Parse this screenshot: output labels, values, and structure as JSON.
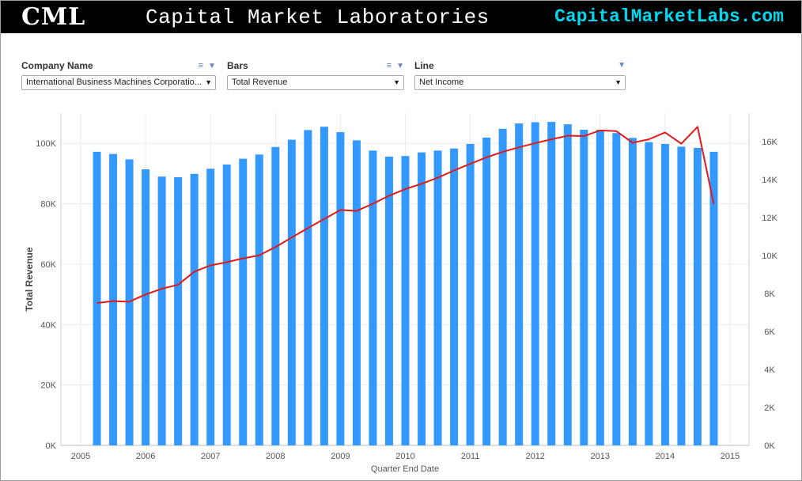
{
  "banner": {
    "logo": "CML",
    "title": "Capital Market Laboratories",
    "url": "CapitalMarketLabs.com"
  },
  "filters": [
    {
      "label": "Company Name",
      "value": "International Business Machines Corporatio..."
    },
    {
      "label": "Bars",
      "value": "Total Revenue"
    },
    {
      "label": "Line",
      "value": "Net Income"
    }
  ],
  "colors": {
    "bars": "#3399ff",
    "line": "#e0191b",
    "grid": "#ebebeb"
  },
  "chart_data": {
    "type": "bar+line",
    "xlabel": "Quarter End Date",
    "ylabel": "Total Revenue",
    "x_ticks": [
      "2005",
      "2006",
      "2007",
      "2008",
      "2009",
      "2010",
      "2011",
      "2012",
      "2013",
      "2014",
      "2015"
    ],
    "y_left_ticks": [
      "0K",
      "20K",
      "40K",
      "60K",
      "80K",
      "100K"
    ],
    "y_right_ticks": [
      "0K",
      "2K",
      "4K",
      "6K",
      "8K",
      "10K",
      "12K",
      "14K",
      "16K"
    ],
    "y_left_range": [
      0,
      110000
    ],
    "y_right_range": [
      0,
      17500
    ],
    "quarters": [
      "2005Q1",
      "2005Q2",
      "2005Q3",
      "2005Q4",
      "2006Q1",
      "2006Q2",
      "2006Q3",
      "2006Q4",
      "2007Q1",
      "2007Q2",
      "2007Q3",
      "2007Q4",
      "2008Q1",
      "2008Q2",
      "2008Q3",
      "2008Q4",
      "2009Q1",
      "2009Q2",
      "2009Q3",
      "2009Q4",
      "2010Q1",
      "2010Q2",
      "2010Q3",
      "2010Q4",
      "2011Q1",
      "2011Q2",
      "2011Q3",
      "2011Q4",
      "2012Q1",
      "2012Q2",
      "2012Q3",
      "2012Q4",
      "2013Q1",
      "2013Q2",
      "2013Q3",
      "2013Q4",
      "2014Q1",
      "2014Q2",
      "2014Q3"
    ],
    "bars_total_revenue": [
      97200,
      96500,
      94700,
      91400,
      89000,
      88800,
      89900,
      91600,
      93000,
      94900,
      96300,
      98800,
      101200,
      104400,
      105500,
      103700,
      101000,
      97600,
      95600,
      95800,
      97000,
      97600,
      98300,
      99800,
      101900,
      104800,
      106600,
      107000,
      107100,
      106300,
      104500,
      104500,
      103400,
      101800,
      100400,
      99800,
      98900,
      98500,
      97200
    ],
    "line_net_income": [
      7500,
      7600,
      7570,
      7950,
      8250,
      8460,
      9150,
      9480,
      9650,
      9850,
      10010,
      10450,
      10950,
      11450,
      11920,
      12400,
      12350,
      12730,
      13150,
      13500,
      13780,
      14100,
      14480,
      14830,
      15170,
      15460,
      15700,
      15920,
      16120,
      16310,
      16290,
      16590,
      16550,
      15940,
      16120,
      16480,
      15890,
      16780,
      12710
    ]
  }
}
